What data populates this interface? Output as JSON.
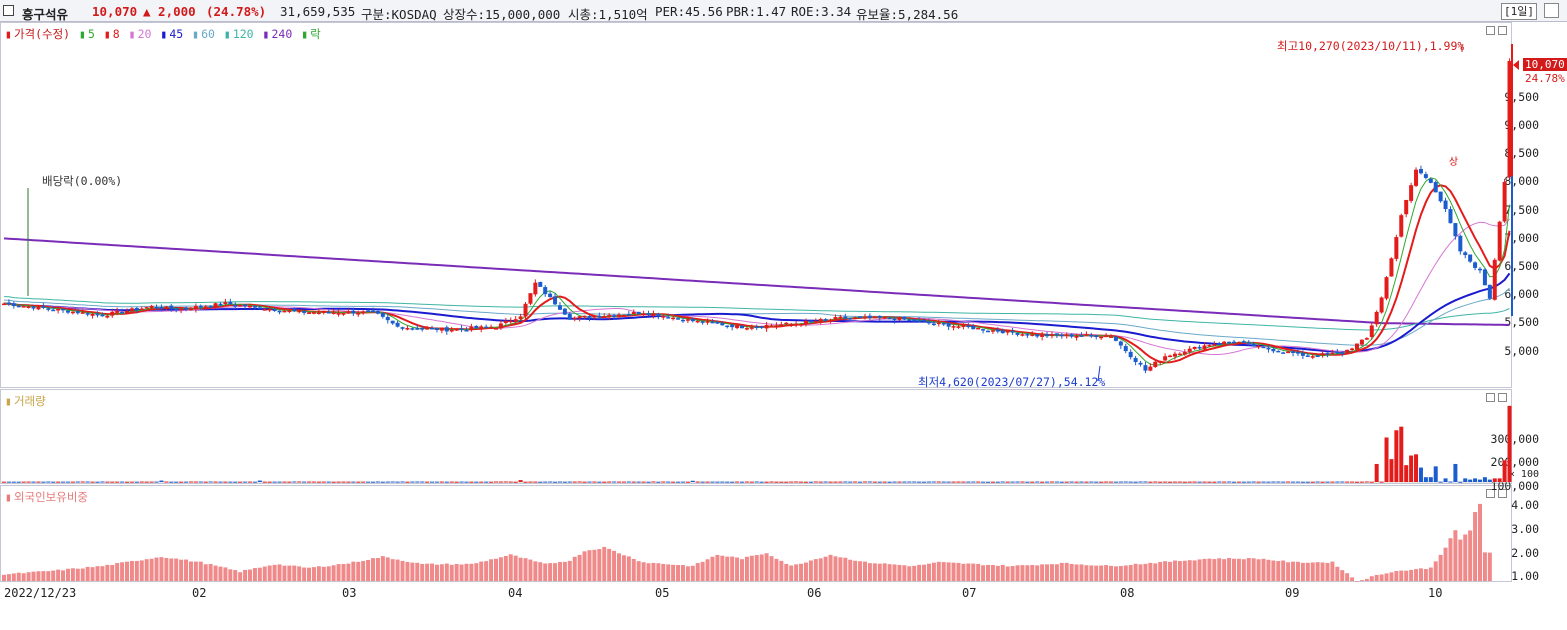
{
  "header": {
    "name": "흥구석유",
    "price": "10,070",
    "change": "▲ 2,000",
    "change_pct": "(24.78%)",
    "volume": "31,659,535",
    "market": "구분:KOSDAQ",
    "shares": "상장수:15,000,000",
    "mcap": "시총:1,510억",
    "per": "PER:45.56",
    "pbr": "PBR:1.47",
    "roe": "ROE:3.34",
    "float": "유보율:5,284.56",
    "period": "[1일]"
  },
  "colors": {
    "up": "#e31b1b",
    "down": "#1b5ccf",
    "ma5": "#2fa82f",
    "ma20": "#d476d4",
    "ma45": "#1b1bcf",
    "ma60": "#6aa8c8",
    "ma120": "#3fb4a4",
    "ma240": "#7a2bb8",
    "foreign": "#f08a8a"
  },
  "price_panel": {
    "legend": [
      "가격(수정)",
      "5",
      "8",
      "20",
      "45",
      "60",
      "120",
      "240",
      "락"
    ],
    "y_ticks": [
      "9,500",
      "9,000",
      "8,500",
      "8,000",
      "7,500",
      "7,000",
      "6,500",
      "6,000",
      "5,500",
      "5,000"
    ],
    "last_price": "10,070",
    "last_pct": "24.78%",
    "high_note": "최고10,270(2023/10/11),1.99%",
    "low_note": "최저4,620(2023/07/27),54.12%",
    "dividend_note": "배당락(0.00%)",
    "up_marker": "상"
  },
  "volume_panel": {
    "title": "거래량",
    "y_ticks": [
      "300,000",
      "200,000",
      "100,000",
      "× 100"
    ]
  },
  "foreign_panel": {
    "title": "외국인보유비중",
    "y_ticks": [
      "4.00",
      "3.00",
      "2.00",
      "1.00"
    ]
  },
  "x_axis": {
    "labels": [
      "2022/12/23",
      "02",
      "03",
      "04",
      "05",
      "06",
      "07",
      "08",
      "09",
      "10"
    ]
  },
  "chart_data": {
    "type": "candlestick",
    "price_ylim": [
      4500,
      10500
    ],
    "anchors": [
      [
        0,
        5900
      ],
      [
        10,
        5800
      ],
      [
        20,
        5700
      ],
      [
        30,
        5850
      ],
      [
        35,
        5800
      ],
      [
        45,
        5900
      ],
      [
        55,
        5800
      ],
      [
        60,
        5750
      ],
      [
        75,
        5750
      ],
      [
        80,
        5500
      ],
      [
        90,
        5450
      ],
      [
        100,
        5500
      ],
      [
        105,
        5700
      ],
      [
        108,
        6250
      ],
      [
        115,
        5650
      ],
      [
        130,
        5750
      ],
      [
        140,
        5600
      ],
      [
        150,
        5500
      ],
      [
        160,
        5550
      ],
      [
        170,
        5650
      ],
      [
        180,
        5650
      ],
      [
        190,
        5550
      ],
      [
        200,
        5450
      ],
      [
        210,
        5350
      ],
      [
        225,
        5350
      ],
      [
        232,
        4750
      ],
      [
        236,
        5000
      ],
      [
        245,
        5200
      ],
      [
        250,
        5250
      ],
      [
        255,
        5150
      ],
      [
        265,
        5000
      ],
      [
        272,
        5050
      ],
      [
        277,
        5300
      ],
      [
        280,
        6000
      ],
      [
        284,
        7400
      ],
      [
        287,
        8200
      ],
      [
        290,
        8000
      ],
      [
        293,
        7500
      ],
      [
        296,
        6800
      ],
      [
        300,
        6450
      ],
      [
        302,
        6000
      ],
      [
        305,
        8000
      ],
      [
        306,
        10070
      ]
    ],
    "volume_ylim": [
      0,
      320000
    ],
    "volume_spikes": [
      [
        32,
        6000
      ],
      [
        52,
        6000
      ],
      [
        105,
        8000
      ],
      [
        140,
        5000
      ],
      [
        279,
        75000
      ],
      [
        281,
        185000
      ],
      [
        282,
        95000
      ],
      [
        283,
        215000
      ],
      [
        284,
        230000
      ],
      [
        285,
        70000
      ],
      [
        286,
        110000
      ],
      [
        287,
        115000
      ],
      [
        288,
        60000
      ],
      [
        289,
        20000
      ],
      [
        290,
        20000
      ],
      [
        291,
        65000
      ],
      [
        293,
        15000
      ],
      [
        295,
        75000
      ],
      [
        297,
        15000
      ],
      [
        298,
        10000
      ],
      [
        299,
        15000
      ],
      [
        300,
        10000
      ],
      [
        301,
        20000
      ],
      [
        302,
        10000
      ],
      [
        303,
        15000
      ],
      [
        304,
        15000
      ],
      [
        305,
        90000
      ],
      [
        306,
        316596
      ]
    ],
    "foreign_ylim": [
      0,
      4.6
    ],
    "foreign_anchors": [
      [
        0,
        0.35
      ],
      [
        10,
        0.55
      ],
      [
        20,
        0.8
      ],
      [
        32,
        1.3
      ],
      [
        40,
        1.0
      ],
      [
        48,
        0.5
      ],
      [
        55,
        0.9
      ],
      [
        62,
        0.7
      ],
      [
        70,
        0.95
      ],
      [
        77,
        1.3
      ],
      [
        85,
        0.9
      ],
      [
        95,
        0.9
      ],
      [
        103,
        1.4
      ],
      [
        110,
        0.9
      ],
      [
        115,
        1.1
      ],
      [
        118,
        1.6
      ],
      [
        122,
        1.8
      ],
      [
        130,
        1.0
      ],
      [
        140,
        0.8
      ],
      [
        145,
        1.4
      ],
      [
        150,
        1.2
      ],
      [
        155,
        1.5
      ],
      [
        160,
        0.8
      ],
      [
        168,
        1.4
      ],
      [
        175,
        1.0
      ],
      [
        185,
        0.8
      ],
      [
        190,
        1.0
      ],
      [
        205,
        0.8
      ],
      [
        215,
        0.95
      ],
      [
        225,
        0.8
      ],
      [
        235,
        1.0
      ],
      [
        245,
        1.2
      ],
      [
        255,
        1.2
      ],
      [
        262,
        1.0
      ],
      [
        270,
        1.0
      ],
      [
        275,
        0.0
      ],
      [
        279,
        0.3
      ],
      [
        282,
        0.5
      ],
      [
        290,
        0.7
      ],
      [
        293,
        1.8
      ],
      [
        295,
        2.7
      ],
      [
        296,
        2.2
      ],
      [
        297,
        2.5
      ],
      [
        298,
        2.7
      ],
      [
        299,
        3.7
      ],
      [
        300,
        4.1
      ],
      [
        301,
        1.5
      ],
      [
        302,
        1.5
      ]
    ]
  }
}
